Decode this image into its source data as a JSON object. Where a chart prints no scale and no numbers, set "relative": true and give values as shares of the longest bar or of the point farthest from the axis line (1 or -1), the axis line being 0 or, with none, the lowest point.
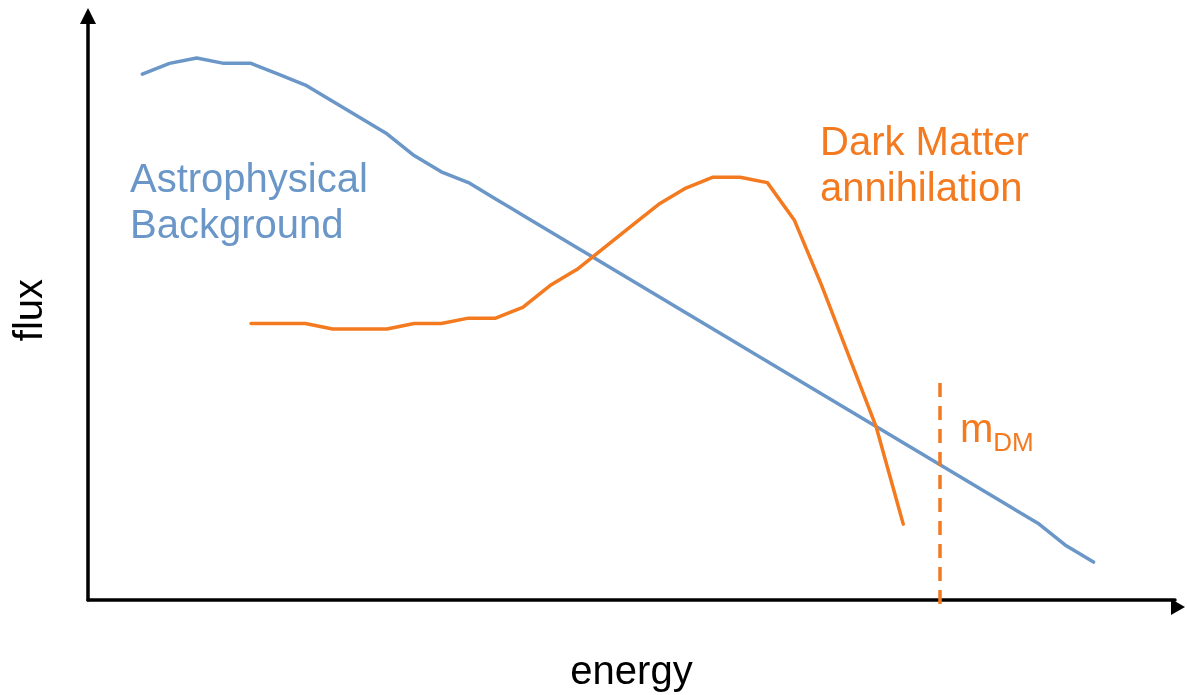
{
  "chart_data": {
    "type": "line",
    "relative": true,
    "xlabel": "energy",
    "ylabel": "flux",
    "annotations": [
      "m$_{DM}$"
    ],
    "grid": false,
    "legend": false,
    "marker": "none",
    "line_style": "solid",
    "categories": [
      null,
      null,
      null,
      null,
      null,
      null,
      null,
      null,
      null,
      null,
      null,
      null,
      null,
      null,
      null,
      null,
      null,
      null,
      null,
      null,
      null,
      null,
      null,
      null,
      null,
      null,
      null,
      null,
      null,
      null,
      null,
      null,
      null,
      null,
      null,
      null,
      null,
      null,
      null,
      null,
      null
    ],
    "series": [
      {
        "name": "Astrophysical\nBackground",
        "color": "#6a97c8",
        "values": [
          null,
          null,
          0.97,
          0.99,
          1,
          0.99,
          0.99,
          0.97,
          0.95,
          0.92,
          0.89,
          0.86,
          0.82,
          0.79,
          0.77,
          0.74,
          0.71,
          0.68,
          0.65,
          0.62,
          0.59,
          0.56,
          0.53,
          0.5,
          0.47,
          0.44,
          0.41,
          0.38,
          0.35,
          0.32,
          0.29,
          0.26,
          0.23,
          0.2,
          0.17,
          0.14,
          0.1,
          0.07,
          null,
          null,
          null
        ]
      },
      {
        "name": "Dark Matter\nannihilation",
        "color": "#f47a20",
        "values": [
          null,
          null,
          null,
          null,
          null,
          null,
          0.51,
          0.51,
          0.51,
          0.5,
          0.5,
          0.5,
          0.51,
          0.51,
          0.52,
          0.52,
          0.54,
          0.58,
          0.61,
          0.65,
          0.69,
          0.73,
          0.76,
          0.78,
          0.78,
          0.77,
          0.7,
          0.58,
          0.45,
          0.32,
          0.14,
          null,
          null,
          null,
          null,
          null,
          null,
          null,
          null,
          null,
          null
        ]
      }
    ]
  }
}
